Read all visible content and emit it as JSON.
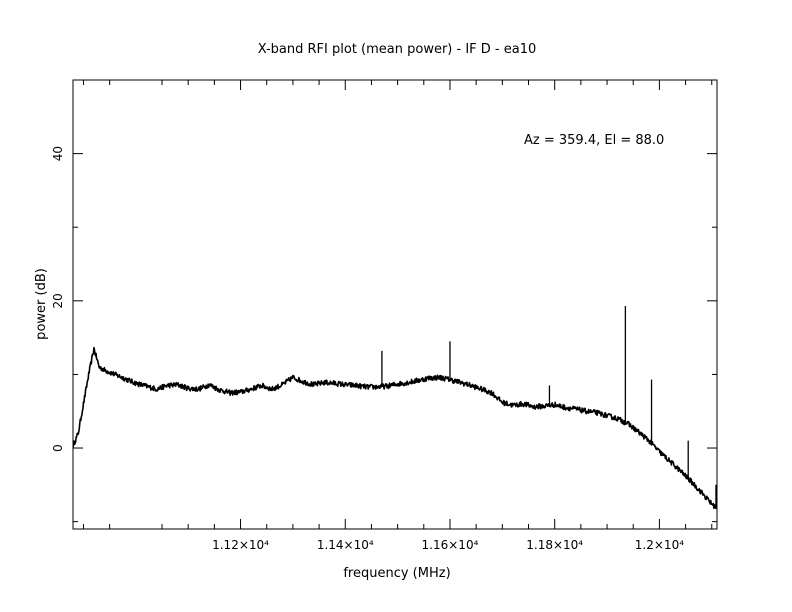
{
  "chart_data": {
    "type": "line",
    "title": "X-band RFI plot (mean power) - IF D - ea10",
    "xlabel": "frequency (MHz)",
    "ylabel": "power (dB)",
    "annotation": "Az = 359.4, El = 88.0",
    "xlim": [
      10880,
      12110
    ],
    "ylim": [
      -11,
      50
    ],
    "x_ticks": [
      {
        "value": 11200,
        "label": "1.12×10⁴"
      },
      {
        "value": 11400,
        "label": "1.14×10⁴"
      },
      {
        "value": 11600,
        "label": "1.16×10⁴"
      },
      {
        "value": 11800,
        "label": "1.18×10⁴"
      },
      {
        "value": 12000,
        "label": "1.2×10⁴"
      }
    ],
    "y_ticks": [
      {
        "value": 0,
        "label": "0"
      },
      {
        "value": 20,
        "label": "20"
      },
      {
        "value": 40,
        "label": "40"
      }
    ],
    "grid": false,
    "legend": "none",
    "series": [
      {
        "color": "#000000",
        "x": [
          10880,
          10890,
          10900,
          10910,
          10920,
          10930,
          10940,
          10960,
          10980,
          11000,
          11020,
          11040,
          11060,
          11080,
          11100,
          11120,
          11140,
          11160,
          11180,
          11200,
          11220,
          11240,
          11260,
          11280,
          11300,
          11320,
          11340,
          11360,
          11380,
          11400,
          11420,
          11440,
          11460,
          11480,
          11500,
          11520,
          11540,
          11560,
          11580,
          11600,
          11620,
          11640,
          11660,
          11680,
          11700,
          11720,
          11740,
          11760,
          11780,
          11800,
          11820,
          11840,
          11860,
          11880,
          11900,
          11920,
          11940,
          11960,
          11980,
          12000,
          12020,
          12040,
          12060,
          12080,
          12100,
          12110
        ],
        "y": [
          0.3,
          2,
          6,
          10,
          13.5,
          11,
          10.6,
          10,
          9.4,
          8.8,
          8.4,
          8,
          8.5,
          8.6,
          8.1,
          8,
          8.6,
          7.9,
          7.5,
          7.6,
          8,
          8.5,
          8,
          8.6,
          9.6,
          9,
          8.6,
          8.9,
          8.8,
          8.6,
          8.5,
          8.3,
          8.3,
          8.4,
          8.7,
          8.9,
          9.2,
          9.5,
          9.6,
          9.3,
          8.9,
          8.5,
          8,
          7.5,
          6.2,
          5.8,
          6,
          5.6,
          5.7,
          5.9,
          5.5,
          5.3,
          5,
          4.8,
          4.4,
          4,
          3.3,
          2.2,
          1,
          -0.5,
          -1.8,
          -3.1,
          -4.5,
          -6,
          -7.6,
          -8.2
        ],
        "spikes": [
          {
            "x": 11470,
            "y": 13.2
          },
          {
            "x": 11600,
            "y": 14.5
          },
          {
            "x": 11790,
            "y": 8.5
          },
          {
            "x": 11935,
            "y": 19.3
          },
          {
            "x": 11985,
            "y": 9.3
          },
          {
            "x": 12055,
            "y": 1
          },
          {
            "x": 12108,
            "y": -5
          }
        ]
      }
    ]
  }
}
